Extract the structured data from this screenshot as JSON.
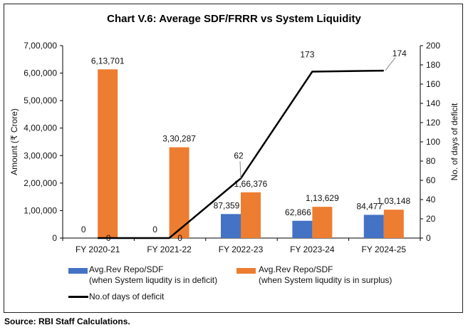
{
  "chart_data": {
    "type": "bar+line",
    "title": "Chart V.6: Average SDF/FRRR vs System Liquidity",
    "categories": [
      "FY 2020-21",
      "FY 2021-22",
      "FY 2022-23",
      "FY 2023-24",
      "FY 2024-25"
    ],
    "ylabel": "Amount (₹ Crore)",
    "y2label": "No. of days of deficit",
    "ylim": [
      0,
      700000
    ],
    "y2lim": [
      0,
      200
    ],
    "yticks": [
      "0",
      "1,00,000",
      "2,00,000",
      "3,00,000",
      "4,00,000",
      "5,00,000",
      "6,00,000",
      "7,00,000"
    ],
    "y2ticks": [
      "0",
      "20",
      "40",
      "60",
      "80",
      "100",
      "120",
      "140",
      "160",
      "180",
      "200"
    ],
    "series": [
      {
        "name": "Avg.Rev Repo/SDF",
        "name2": "(when System liqudity is in deficit)",
        "type": "bar",
        "color": "#4472C4",
        "values": [
          0,
          0,
          87359,
          62866,
          84477
        ],
        "labels": [
          "0",
          "0",
          "87,359",
          "62,866",
          "84,477"
        ]
      },
      {
        "name": "Avg.Rev Repo/SDF",
        "name2": "(when System liqudity is in surplus)",
        "type": "bar",
        "color": "#ED7D31",
        "values": [
          613701,
          330287,
          166376,
          113629,
          103148
        ],
        "labels": [
          "6,13,701",
          "3,30,287",
          "1,66,376",
          "1,13,629",
          "1,03,148"
        ]
      },
      {
        "name": "No.of days of deficit",
        "type": "line",
        "axis": "right",
        "color": "#000000",
        "values": [
          0,
          0,
          62,
          173,
          174
        ],
        "labels": [
          "0",
          "0",
          "62",
          "173",
          "174"
        ]
      }
    ],
    "legend": "bottom",
    "grid": false
  },
  "source": "Source: RBI Staff Calculations."
}
